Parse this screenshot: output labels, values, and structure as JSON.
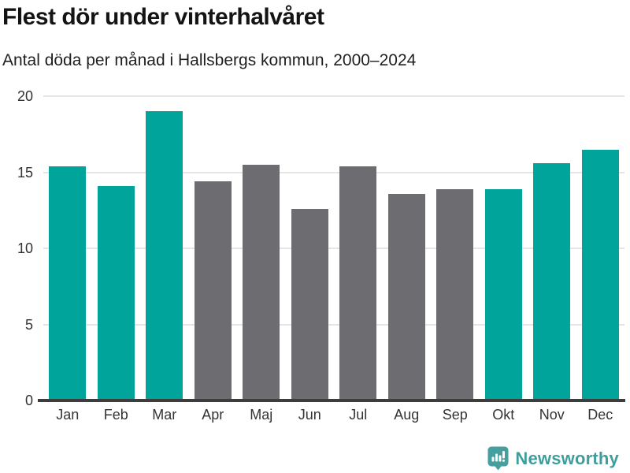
{
  "header": {
    "title": "Flest dör under vinterhalvåret",
    "subtitle": "Antal döda per månad i Hallsbergs kommun, 2000–2024"
  },
  "chart_data": {
    "type": "bar",
    "title": "Flest dör under vinterhalvåret",
    "subtitle": "Antal döda per månad i Hallsbergs kommun, 2000–2024",
    "categories": [
      "Jan",
      "Feb",
      "Mar",
      "Apr",
      "Maj",
      "Jun",
      "Jul",
      "Aug",
      "Sep",
      "Okt",
      "Nov",
      "Dec"
    ],
    "values": [
      15.4,
      14.1,
      19.0,
      14.4,
      15.5,
      12.6,
      15.4,
      13.6,
      13.9,
      13.9,
      15.6,
      16.5
    ],
    "bar_color_keys": [
      "highlight",
      "highlight",
      "highlight",
      "base",
      "base",
      "base",
      "base",
      "base",
      "base",
      "highlight",
      "highlight",
      "highlight"
    ],
    "xlabel": "",
    "ylabel": "",
    "ylim": [
      0,
      20
    ],
    "yticks": [
      0,
      5,
      10,
      15,
      20
    ],
    "grid": "horizontal",
    "legend": "none",
    "colors": {
      "highlight": "#00a49a",
      "base": "#6d6c71",
      "gridline": "#e5e5e5",
      "axis_line": "#3d3d3d",
      "tick_label": "#333333"
    }
  },
  "footer": {
    "brand": "Newsworthy",
    "brand_color": "#3f9e9d",
    "logo_icon": "bar-chart-speech-bubble"
  }
}
